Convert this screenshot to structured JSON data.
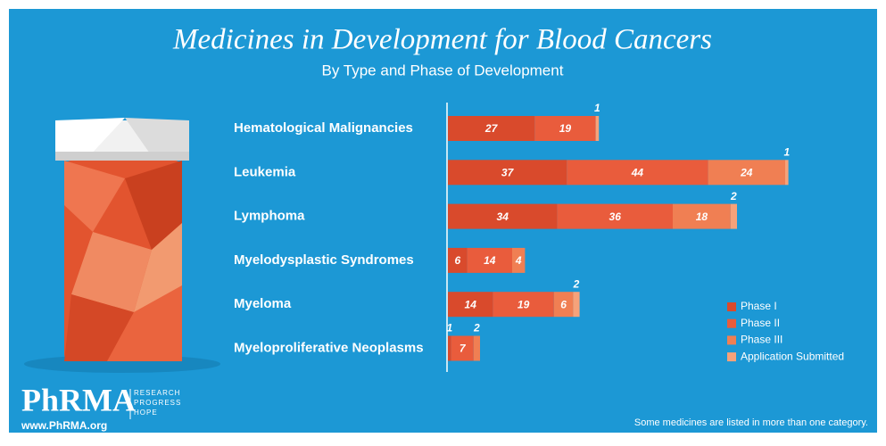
{
  "chart_data": {
    "type": "stacked-bar-horizontal",
    "title": "Medicines in Development for Blood Cancers",
    "subtitle": "By Type and Phase of Development",
    "categories": [
      "Hematological Malignancies",
      "Leukemia",
      "Lymphoma",
      "Myelodysplastic Syndromes",
      "Myeloma",
      "Myeloproliferative Neoplasms"
    ],
    "series": [
      {
        "name": "Phase I",
        "color": "#d94a2c",
        "values": [
          27,
          37,
          34,
          6,
          14,
          1
        ]
      },
      {
        "name": "Phase II",
        "color": "#e95c3c",
        "values": [
          19,
          44,
          36,
          14,
          19,
          7
        ]
      },
      {
        "name": "Phase III",
        "color": "#f07f53",
        "values": [
          null,
          24,
          18,
          4,
          6,
          2
        ]
      },
      {
        "name": "Application Submitted",
        "color": "#f6a27a",
        "values": [
          1,
          1,
          2,
          null,
          2,
          null
        ]
      }
    ],
    "legend": "lower-right",
    "note": "Some medicines are listed in more than one category."
  },
  "branding": {
    "logo": "PhRMA",
    "tagline": [
      "RESEARCH",
      "PROGRESS",
      "HOPE"
    ],
    "url": "www.PhRMA.org"
  }
}
